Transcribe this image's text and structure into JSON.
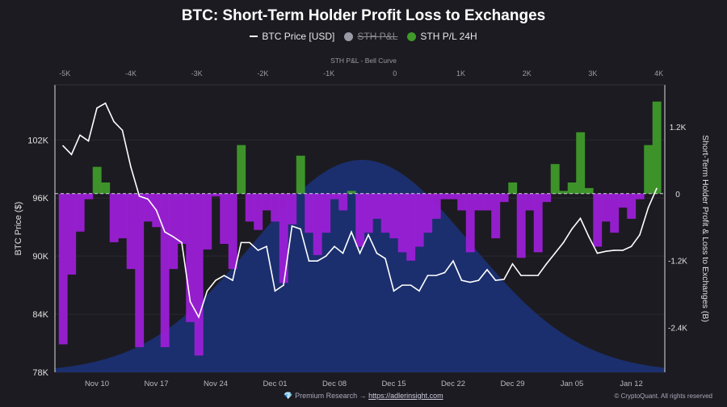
{
  "title": "BTC: Short-Term Holder Profit Loss to Exchanges",
  "legend": [
    {
      "label": "BTC Price [USD]",
      "color": "#ffffff",
      "marker": "line",
      "hidden": false
    },
    {
      "label": "STH P&L",
      "color": "#9a9aa6",
      "marker": "dot",
      "hidden": true
    },
    {
      "label": "STH P/L 24H",
      "color": "#3f9a2a",
      "marker": "dot",
      "hidden": false
    }
  ],
  "footer": {
    "icon": "diamond-icon",
    "text": "Premium Research →",
    "link": "https://adlerinsight.com",
    "copyright": "© CryptoQuant. All rights reserved"
  },
  "colors": {
    "background": "#1c1b21",
    "price": "#ffffff",
    "positive": "#3f9a2a",
    "negative": "#9b1fd6",
    "bell": "#1b2f6e"
  },
  "chart_data": {
    "type": "combo",
    "title": "BTC: Short-Term Holder Profit Loss to Exchanges",
    "x": [
      "Nov 06",
      "Nov 07",
      "Nov 08",
      "Nov 09",
      "Nov 10",
      "Nov 11",
      "Nov 12",
      "Nov 13",
      "Nov 14",
      "Nov 15",
      "Nov 16",
      "Nov 17",
      "Nov 18",
      "Nov 19",
      "Nov 20",
      "Nov 21",
      "Nov 22",
      "Nov 23",
      "Nov 24",
      "Nov 25",
      "Nov 26",
      "Nov 27",
      "Nov 28",
      "Nov 29",
      "Nov 30",
      "Dec 01",
      "Dec 02",
      "Dec 03",
      "Dec 04",
      "Dec 05",
      "Dec 06",
      "Dec 07",
      "Dec 08",
      "Dec 09",
      "Dec 10",
      "Dec 11",
      "Dec 12",
      "Dec 13",
      "Dec 14",
      "Dec 15",
      "Dec 16",
      "Dec 17",
      "Dec 18",
      "Dec 19",
      "Dec 20",
      "Dec 21",
      "Dec 22",
      "Dec 23",
      "Dec 24",
      "Dec 25",
      "Dec 26",
      "Dec 27",
      "Dec 28",
      "Dec 29",
      "Dec 30",
      "Dec 31",
      "Jan 01",
      "Jan 02",
      "Jan 03",
      "Jan 04",
      "Jan 05",
      "Jan 06",
      "Jan 07",
      "Jan 08",
      "Jan 09",
      "Jan 10",
      "Jan 11",
      "Jan 12",
      "Jan 13",
      "Jan 14",
      "Jan 15"
    ],
    "x_ticks": [
      "Nov 10",
      "Nov 17",
      "Nov 24",
      "Dec 01",
      "Dec 08",
      "Dec 15",
      "Dec 22",
      "Dec 29",
      "Jan 05",
      "Jan 12"
    ],
    "series": [
      {
        "name": "BTC Price [USD]",
        "axis": "left",
        "type": "line",
        "unit": "K USD",
        "values": [
          101.4,
          100.5,
          102.5,
          101.9,
          105.3,
          105.8,
          103.9,
          103.0,
          99.2,
          96.2,
          95.9,
          94.75,
          92.5,
          92.0,
          91.4,
          85.3,
          83.7,
          86.4,
          87.5,
          88.0,
          87.5,
          91.4,
          91.4,
          90.6,
          91.0,
          86.4,
          87.0,
          93.1,
          92.8,
          89.5,
          89.5,
          90.0,
          91.0,
          90.3,
          92.5,
          90.3,
          92.2,
          90.3,
          89.75,
          86.4,
          87.0,
          87.0,
          86.4,
          88.0,
          88.0,
          88.3,
          89.5,
          87.5,
          87.3,
          87.5,
          88.6,
          87.5,
          87.6,
          89.2,
          88.0,
          88.0,
          88.0,
          89.2,
          90.3,
          91.4,
          92.8,
          93.9,
          92.0,
          90.3,
          90.5,
          90.6,
          90.6,
          91.0,
          92.2,
          95.0,
          97.0
        ]
      },
      {
        "name": "STH P/L 24H",
        "axis": "right",
        "type": "bar",
        "unit": "K BTC",
        "values": [
          -2.7,
          -1.45,
          -0.68,
          -0.1,
          0.48,
          0.2,
          -0.87,
          -0.8,
          -1.35,
          -2.75,
          -0.5,
          -0.6,
          -2.75,
          -1.35,
          -0.9,
          -2.3,
          -2.9,
          -1.0,
          -0.05,
          -0.9,
          -1.35,
          0.87,
          -0.5,
          -0.65,
          -0.3,
          -0.5,
          -1.6,
          -0.55,
          0.68,
          -0.7,
          -1.1,
          -0.7,
          -0.1,
          -0.3,
          0.05,
          -0.95,
          -0.7,
          -0.45,
          -0.7,
          -0.8,
          -1.05,
          -1.2,
          -0.95,
          -0.7,
          -0.45,
          -0.1,
          -0.1,
          -0.3,
          -1.05,
          -0.3,
          -0.3,
          -0.8,
          -0.15,
          0.2,
          -1.15,
          -0.3,
          -1.05,
          -0.15,
          0.53,
          0.05,
          0.2,
          1.1,
          0.1,
          -0.95,
          -0.5,
          -0.7,
          -0.25,
          -0.45,
          -0.1,
          0.87,
          1.65
        ]
      }
    ],
    "bell_curve": {
      "label": "STH P&L - Bell Curve",
      "mean": -0.5,
      "std": 1.65,
      "xlim": [
        -5.15,
        4.09
      ],
      "ticks": [
        "-5K",
        "-4K",
        "-3K",
        "-2K",
        "-1K",
        "0",
        "1K",
        "2K",
        "3K",
        "4K"
      ],
      "tick_values": [
        -5,
        -4,
        -3,
        -2,
        -1,
        0,
        1,
        2,
        3,
        4
      ]
    },
    "left_axis": {
      "label": "BTC Price ($)",
      "ylim": [
        78,
        107.7
      ],
      "ticks": [
        "78K",
        "84K",
        "90K",
        "96K",
        "102K"
      ],
      "tick_values": [
        78,
        84,
        90,
        96,
        102
      ]
    },
    "right_axis": {
      "label": "Short-Term Holder Profit & Loss to Exchanges (B)",
      "ylim": [
        -3.2,
        1.95
      ],
      "ticks": [
        "1.2K",
        "0",
        "-1.2K",
        "-2.4K"
      ],
      "tick_values": [
        1.2,
        0,
        -1.2,
        -2.4
      ]
    },
    "grid": true
  }
}
